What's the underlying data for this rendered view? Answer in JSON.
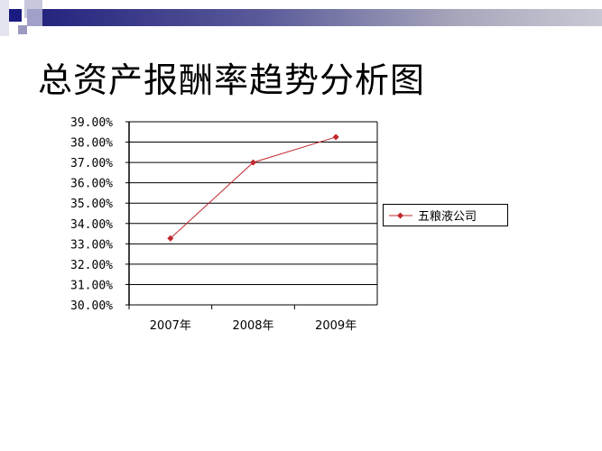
{
  "slide": {
    "title": "总资产报酬率趋势分析图"
  },
  "colors": {
    "banner": "#23237e",
    "series": "#c0282d"
  },
  "chart_data": {
    "type": "line",
    "title": "",
    "categories": [
      "2007年",
      "2008年",
      "2009年"
    ],
    "series": [
      {
        "name": "五粮液公司",
        "values": [
          33.27,
          37.0,
          38.25
        ]
      }
    ],
    "ylim": [
      30,
      39
    ],
    "yticks": [
      "30.00%",
      "31.00%",
      "32.00%",
      "33.00%",
      "34.00%",
      "35.00%",
      "36.00%",
      "37.00%",
      "38.00%",
      "39.00%"
    ],
    "grid": true,
    "legend": "right"
  }
}
